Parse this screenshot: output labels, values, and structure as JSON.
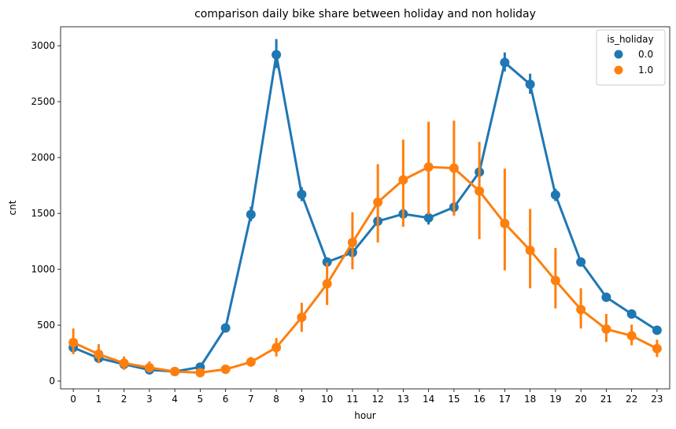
{
  "chart_data": {
    "type": "line",
    "title": "comparison daily bike share between holiday and non holiday",
    "xlabel": "hour",
    "ylabel": "cnt",
    "categories": [
      "0",
      "1",
      "2",
      "3",
      "4",
      "5",
      "6",
      "7",
      "8",
      "9",
      "10",
      "11",
      "12",
      "13",
      "14",
      "15",
      "16",
      "17",
      "18",
      "19",
      "20",
      "21",
      "22",
      "23"
    ],
    "ylim": [
      -70,
      3170
    ],
    "yticks": [
      0,
      500,
      1000,
      1500,
      2000,
      2500,
      3000
    ],
    "grid": false,
    "legend": {
      "title": "is_holiday",
      "placement": "top-right"
    },
    "series": [
      {
        "name": "0.0",
        "color": "#1f77b4",
        "values": [
          300,
          205,
          150,
          100,
          85,
          125,
          475,
          1490,
          2920,
          1670,
          1065,
          1150,
          1430,
          1495,
          1460,
          1555,
          1870,
          2850,
          2655,
          1665,
          1065,
          750,
          600,
          455
        ],
        "lower": [
          250,
          170,
          130,
          80,
          70,
          100,
          440,
          1430,
          2800,
          1610,
          1030,
          1110,
          1390,
          1450,
          1400,
          1490,
          1820,
          2770,
          2570,
          1610,
          1030,
          720,
          570,
          430
        ],
        "upper": [
          345,
          240,
          175,
          120,
          100,
          150,
          505,
          1560,
          3060,
          1735,
          1100,
          1190,
          1475,
          1540,
          1520,
          1620,
          1920,
          2940,
          2750,
          1720,
          1100,
          790,
          635,
          485
        ]
      },
      {
        "name": "1.0",
        "color": "#ff7f0e",
        "values": [
          345,
          240,
          160,
          120,
          85,
          75,
          105,
          170,
          300,
          570,
          870,
          1240,
          1600,
          1800,
          1915,
          1905,
          1700,
          1410,
          1170,
          900,
          640,
          465,
          405,
          290
        ],
        "lower": [
          240,
          160,
          100,
          75,
          60,
          55,
          80,
          130,
          220,
          440,
          680,
          1000,
          1240,
          1380,
          1490,
          1480,
          1270,
          990,
          830,
          650,
          470,
          350,
          320,
          215
        ],
        "upper": [
          470,
          330,
          220,
          175,
          115,
          95,
          130,
          215,
          385,
          700,
          1060,
          1510,
          1940,
          2160,
          2320,
          2330,
          2140,
          1900,
          1540,
          1190,
          830,
          600,
          505,
          370
        ]
      }
    ]
  }
}
